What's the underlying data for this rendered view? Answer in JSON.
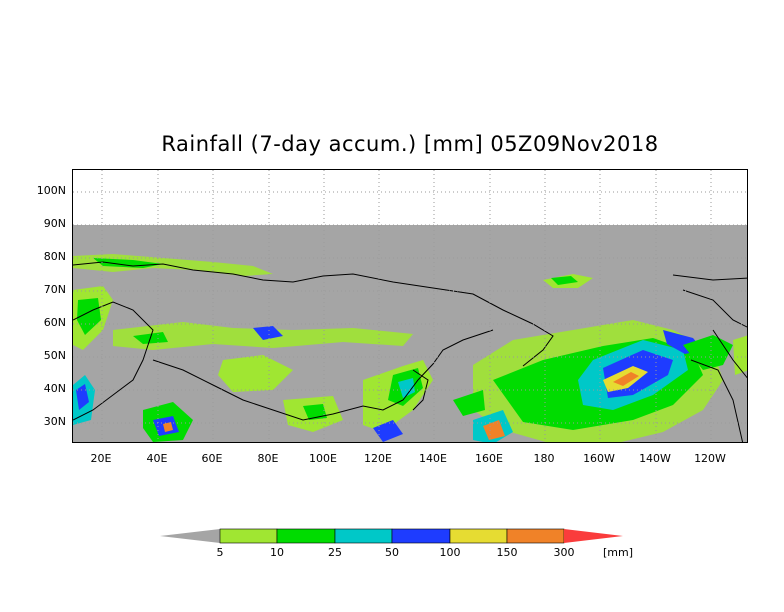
{
  "title": "Rainfall (7-day accum.) [mm] 05Z09Nov2018",
  "latitude_labels": [
    "100N",
    "90N",
    "80N",
    "70N",
    "60N",
    "50N",
    "40N",
    "30N"
  ],
  "longitude_labels": [
    "20E",
    "40E",
    "60E",
    "80E",
    "100E",
    "120E",
    "140E",
    "160E",
    "180",
    "160W",
    "140W",
    "120W"
  ],
  "colors": {
    "no_data": "#a5a5a5",
    "land_outline": "#000000",
    "grid": "#9a9a9a"
  },
  "legend": {
    "unit": "[mm]",
    "thresholds": [
      "5",
      "10",
      "25",
      "50",
      "100",
      "150",
      "300"
    ],
    "bins": [
      {
        "range": "< 5",
        "color": "#a5a5a5"
      },
      {
        "range": "5-10",
        "color": "#a0e632"
      },
      {
        "range": "10-25",
        "color": "#00dc00"
      },
      {
        "range": "25-50",
        "color": "#00c8c8"
      },
      {
        "range": "50-100",
        "color": "#1e3cff"
      },
      {
        "range": "100-150",
        "color": "#e6dc32"
      },
      {
        "range": "150-300",
        "color": "#f08228"
      },
      {
        "range": "> 300",
        "color": "#fa3c3c"
      }
    ]
  }
}
